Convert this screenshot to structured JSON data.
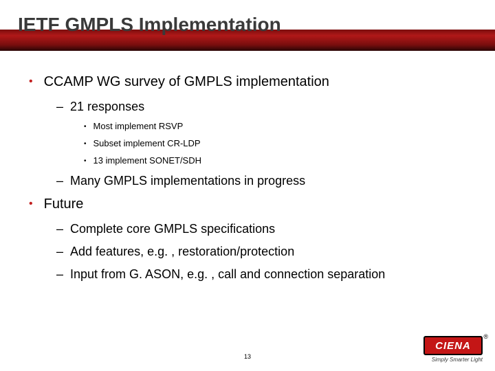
{
  "title": "IETF GMPLS Implementation",
  "bullets": {
    "b1": {
      "text": "CCAMP WG survey of GMPLS implementation",
      "sub": {
        "s1": {
          "text": "21 responses",
          "sub": {
            "t1": "Most implement RSVP",
            "t2": "Subset implement CR-LDP",
            "t3": "13 implement SONET/SDH"
          }
        },
        "s2": {
          "text": "Many GMPLS implementations in progress"
        }
      }
    },
    "b2": {
      "text": "Future",
      "sub": {
        "s1": {
          "text": "Complete core GMPLS specifications"
        },
        "s2": {
          "text": "Add features, e.g. , restoration/protection"
        },
        "s3": {
          "text": "Input from G. ASON, e.g. , call and connection separation"
        }
      }
    }
  },
  "page_number": "13",
  "logo": {
    "text": "CIENA",
    "tagline": "Simply Smarter Light",
    "reg": "®"
  },
  "colors": {
    "accent": "#c22020",
    "title": "#3a3a3a",
    "logo_bg": "#c41616"
  }
}
